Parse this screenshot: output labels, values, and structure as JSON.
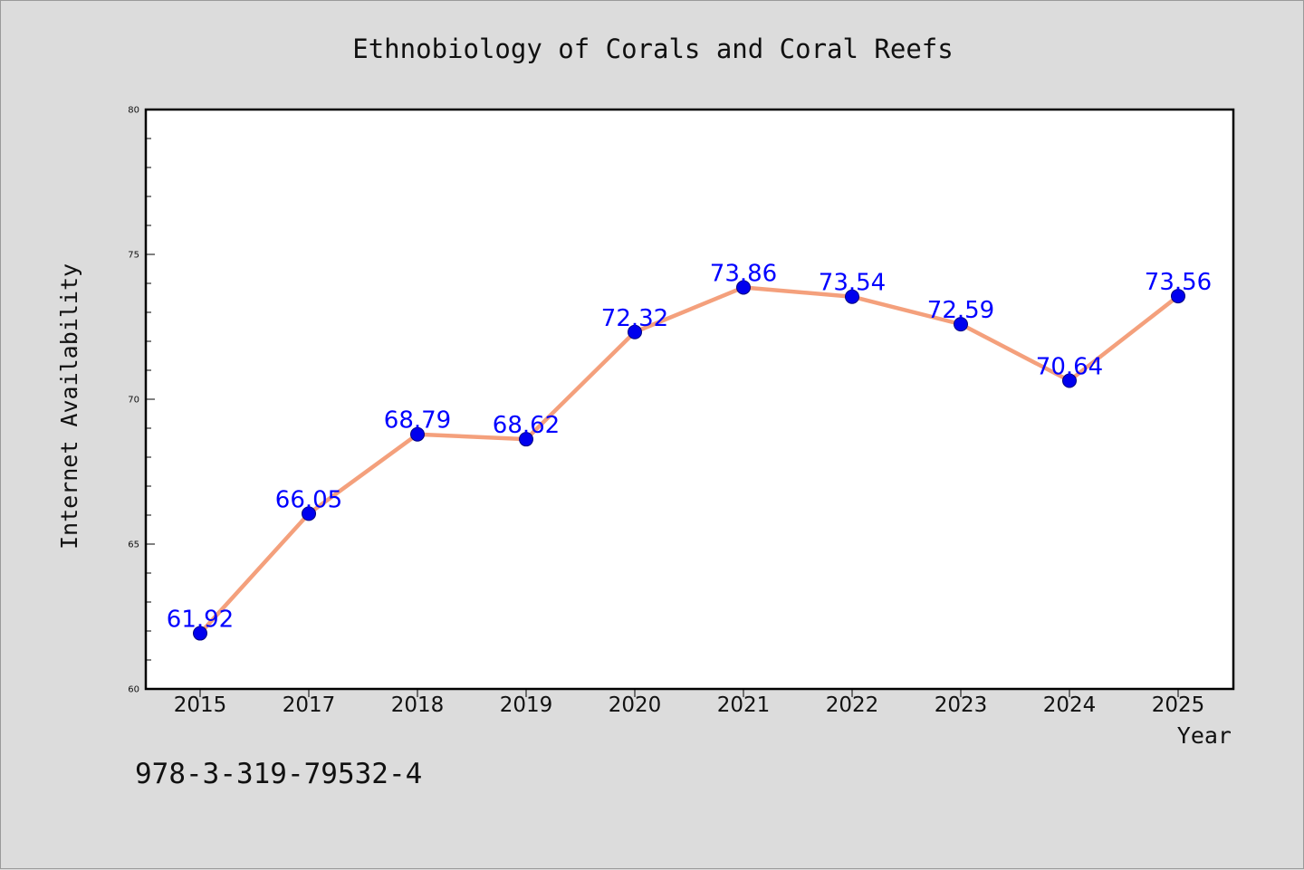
{
  "chart_data": {
    "type": "line",
    "title": "Ethnobiology of Corals and Coral Reefs",
    "xlabel": "Year",
    "ylabel": "Internet Availability",
    "categories": [
      "2015",
      "2017",
      "2018",
      "2019",
      "2020",
      "2021",
      "2022",
      "2023",
      "2024",
      "2025"
    ],
    "series": [
      {
        "values": [
          61.92,
          66.05,
          68.79,
          68.62,
          72.32,
          73.86,
          73.54,
          72.59,
          70.64,
          73.56
        ],
        "data_labels": [
          "61.92",
          "66.05",
          "68.79",
          "68.62",
          "72.32",
          "73.86",
          "73.54",
          "72.59",
          "70.64",
          "73.56"
        ]
      }
    ],
    "ylim": [
      60,
      80
    ],
    "yticks": [
      "60",
      "65",
      "70",
      "75",
      "80"
    ],
    "y_minor_step": 1,
    "grid": false,
    "legend": "none",
    "colors": {
      "line": "#f4a07c",
      "marker": "#0000ee",
      "marker_edge": "#000080",
      "data_label": "#0000ff",
      "plot_background": "#ffffff",
      "figure_background": "#dcdcdc"
    }
  },
  "footnote": "978-3-319-79532-4"
}
